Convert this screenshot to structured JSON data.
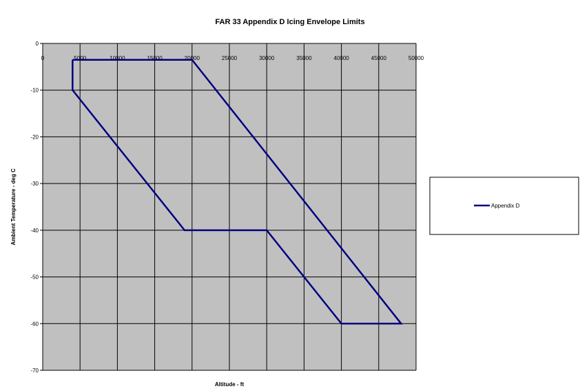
{
  "chart_data": {
    "type": "line",
    "title": "FAR 33 Appendix D Icing Envelope Limits",
    "xlabel": "Altitude - ft",
    "ylabel": "Ambient Temperature - deg C",
    "xlim": [
      0,
      50000
    ],
    "ylim": [
      -70,
      0
    ],
    "x_ticks": [
      "0",
      "5000",
      "10000",
      "15000",
      "20000",
      "25000",
      "30000",
      "35000",
      "40000",
      "45000",
      "50000"
    ],
    "y_ticks": [
      "0",
      "-10",
      "-20",
      "-30",
      "-40",
      "-50",
      "-60",
      "-70"
    ],
    "x_tick_values": [
      0,
      5000,
      10000,
      15000,
      20000,
      25000,
      30000,
      35000,
      40000,
      45000,
      50000
    ],
    "y_tick_values": [
      0,
      -10,
      -20,
      -30,
      -40,
      -50,
      -60,
      -70
    ],
    "grid": true,
    "plot_background": "#c0c0c0",
    "x_axis_position": "top",
    "legend_position": "right",
    "series": [
      {
        "name": "Appendix D",
        "color": "#000080",
        "points": [
          [
            4000,
            -3.5
          ],
          [
            20000,
            -3.5
          ],
          [
            48000,
            -60
          ],
          [
            40000,
            -60
          ],
          [
            30000,
            -40
          ],
          [
            19000,
            -40
          ],
          [
            4000,
            -10
          ],
          [
            4000,
            -3.5
          ]
        ]
      }
    ]
  }
}
